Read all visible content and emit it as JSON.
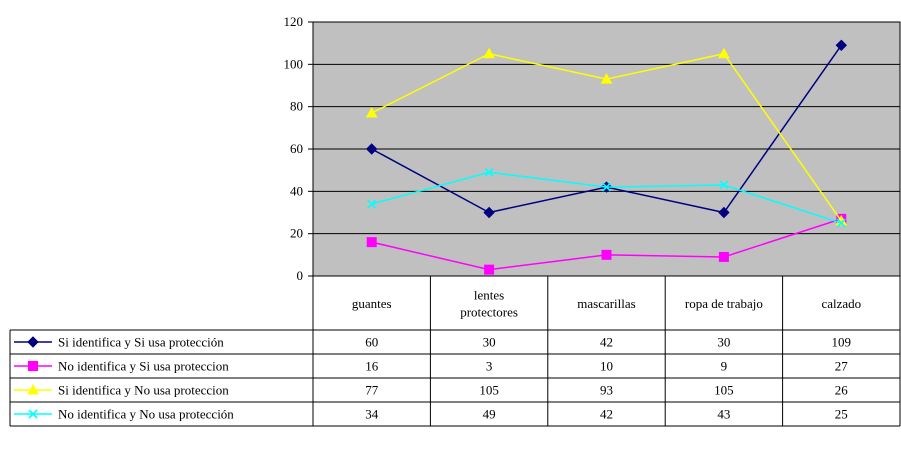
{
  "chart_data": {
    "type": "line",
    "categories": [
      "guantes",
      "lentes protectores",
      "mascarillas",
      "ropa de trabajo",
      "calzado"
    ],
    "category_lines": [
      [
        "guantes"
      ],
      [
        "lentes",
        "protectores"
      ],
      [
        "mascarillas"
      ],
      [
        "ropa de trabajo"
      ],
      [
        "calzado"
      ]
    ],
    "yticks": [
      "0",
      "20",
      "40",
      "60",
      "80",
      "100",
      "120"
    ],
    "ylim": [
      0,
      120
    ],
    "grid": true,
    "plot_background": "#c0c0c0",
    "legend": "data-table",
    "series": [
      {
        "name": "Si identifica y Si usa protección",
        "values": [
          60,
          30,
          42,
          30,
          109
        ],
        "color": "#000080",
        "marker": "diamond"
      },
      {
        "name": "No identifica y Si usa proteccion",
        "values": [
          16,
          3,
          10,
          9,
          27
        ],
        "color": "#ff00ff",
        "marker": "square"
      },
      {
        "name": "Si identifica y No usa proteccion",
        "values": [
          77,
          105,
          93,
          105,
          26
        ],
        "color": "#ffff00",
        "marker": "triangle"
      },
      {
        "name": "No identifica y No usa protección",
        "values": [
          34,
          49,
          42,
          43,
          25
        ],
        "color": "#00ffff",
        "marker": "x"
      }
    ]
  }
}
